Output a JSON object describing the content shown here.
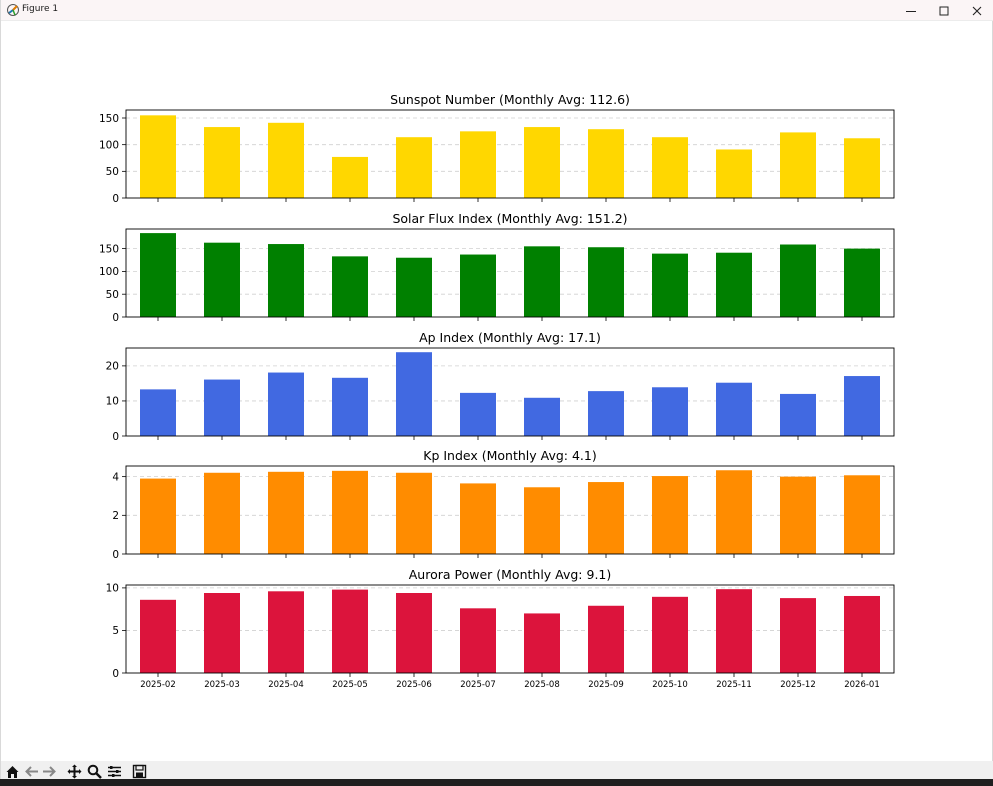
{
  "window": {
    "title": "Figure 1",
    "minimize_icon": "minimize-icon",
    "maximize_icon": "maximize-icon",
    "close_icon": "close-icon"
  },
  "toolbar": {
    "tools": [
      "home-icon",
      "back-icon",
      "forward-icon",
      "pan-icon",
      "zoom-icon",
      "configure-subplots-icon",
      "save-icon"
    ]
  },
  "chart_data": [
    {
      "type": "bar",
      "title": "Sunspot Number (Monthly Avg: 112.6)",
      "categories": [
        "2025-02",
        "2025-03",
        "2025-04",
        "2025-05",
        "2025-06",
        "2025-07",
        "2025-08",
        "2025-09",
        "2025-10",
        "2025-11",
        "2025-12",
        "2026-01"
      ],
      "values": [
        155,
        133,
        141,
        77,
        114,
        125,
        133,
        129,
        114,
        91,
        123,
        112
      ],
      "ylim": [
        0,
        165
      ],
      "yticks": [
        0,
        50,
        100,
        150
      ],
      "color": "#ffd700",
      "grid": "y dashed"
    },
    {
      "type": "bar",
      "title": "Solar Flux Index (Monthly Avg: 151.2)",
      "categories": [
        "2025-02",
        "2025-03",
        "2025-04",
        "2025-05",
        "2025-06",
        "2025-07",
        "2025-08",
        "2025-09",
        "2025-10",
        "2025-11",
        "2025-12",
        "2026-01"
      ],
      "values": [
        184,
        163,
        160,
        133,
        130,
        137,
        155,
        153,
        139,
        141,
        159,
        150
      ],
      "ylim": [
        0,
        193
      ],
      "yticks": [
        0,
        50,
        100,
        150
      ],
      "color": "#008000",
      "grid": "y dashed"
    },
    {
      "type": "bar",
      "title": "Ap Index (Monthly Avg: 17.1)",
      "categories": [
        "2025-02",
        "2025-03",
        "2025-04",
        "2025-05",
        "2025-06",
        "2025-07",
        "2025-08",
        "2025-09",
        "2025-10",
        "2025-11",
        "2025-12",
        "2026-01"
      ],
      "values": [
        13.3,
        16.1,
        18.1,
        16.6,
        23.9,
        12.3,
        10.9,
        12.8,
        13.9,
        15.2,
        12.0,
        17.1
      ],
      "ylim": [
        0,
        25.1
      ],
      "yticks": [
        0,
        10,
        20
      ],
      "color": "#4169e1",
      "grid": "y dashed"
    },
    {
      "type": "bar",
      "title": "Kp Index (Monthly Avg: 4.1)",
      "categories": [
        "2025-02",
        "2025-03",
        "2025-04",
        "2025-05",
        "2025-06",
        "2025-07",
        "2025-08",
        "2025-09",
        "2025-10",
        "2025-11",
        "2025-12",
        "2026-01"
      ],
      "values": [
        3.9,
        4.2,
        4.25,
        4.3,
        4.2,
        3.65,
        3.45,
        3.72,
        4.03,
        4.33,
        4.0,
        4.07
      ],
      "ylim": [
        0,
        4.55
      ],
      "yticks": [
        0,
        2,
        4
      ],
      "color": "#ff8c00",
      "grid": "y dashed"
    },
    {
      "type": "bar",
      "title": "Aurora Power (Monthly Avg: 9.1)",
      "categories": [
        "2025-02",
        "2025-03",
        "2025-04",
        "2025-05",
        "2025-06",
        "2025-07",
        "2025-08",
        "2025-09",
        "2025-10",
        "2025-11",
        "2025-12",
        "2026-01"
      ],
      "values": [
        8.6,
        9.4,
        9.6,
        9.8,
        9.4,
        7.6,
        7.0,
        7.9,
        8.95,
        9.85,
        8.8,
        9.05
      ],
      "ylim": [
        0,
        10.34
      ],
      "yticks": [
        0,
        5,
        10
      ],
      "color": "#dc143c",
      "grid": "y dashed",
      "show_xtick_labels": true
    }
  ]
}
